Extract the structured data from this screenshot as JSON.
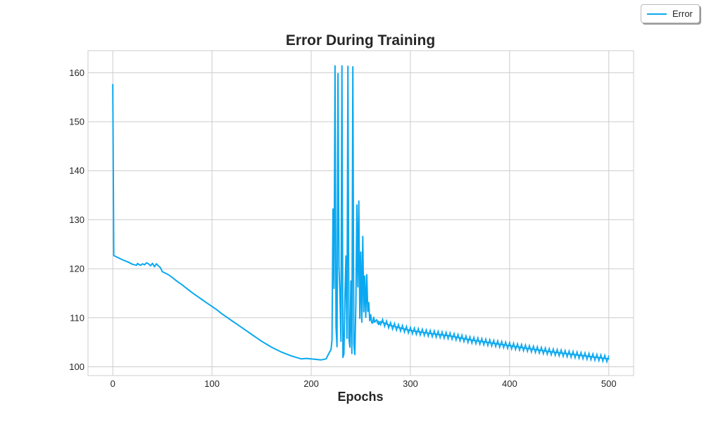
{
  "chart_data": {
    "type": "line",
    "title": "Error During Training",
    "xlabel": "Epochs",
    "ylabel": "",
    "xlim": [
      -25,
      525
    ],
    "ylim": [
      98.2,
      164.5
    ],
    "xticks": [
      0,
      100,
      200,
      300,
      400,
      500
    ],
    "yticks": [
      100,
      110,
      120,
      130,
      140,
      150,
      160
    ],
    "grid": true,
    "legend_position": "top-right (outside axes)",
    "series": [
      {
        "name": "Error",
        "color": "#0aa8f0",
        "x": [
          0,
          1,
          2,
          5,
          10,
          15,
          20,
          24,
          25,
          26,
          28,
          30,
          32,
          34,
          36,
          38,
          40,
          42,
          44,
          46,
          48,
          50,
          53,
          56,
          60,
          65,
          70,
          75,
          80,
          85,
          90,
          95,
          100,
          105,
          110,
          115,
          120,
          125,
          130,
          135,
          140,
          145,
          150,
          155,
          160,
          165,
          170,
          175,
          180,
          185,
          190,
          195,
          200,
          205,
          210,
          215,
          218,
          220,
          221,
          222,
          223,
          224,
          225,
          226,
          227,
          228,
          229,
          230,
          231,
          232,
          233,
          234,
          235,
          236,
          237,
          238,
          239,
          240,
          241,
          242,
          243,
          244,
          245,
          246,
          247,
          248,
          249,
          250,
          251,
          252,
          253,
          254,
          255,
          256,
          257,
          258,
          259,
          260,
          261,
          262,
          263,
          264,
          266,
          268,
          270,
          275,
          280,
          290,
          300,
          320,
          340,
          360,
          380,
          400,
          420,
          440,
          460,
          480,
          500
        ],
        "y": [
          157.6,
          122.7,
          122.6,
          122.3,
          121.8,
          121.4,
          120.9,
          120.7,
          121.1,
          120.9,
          120.7,
          121.0,
          120.8,
          121.2,
          121.0,
          120.6,
          121.1,
          120.4,
          121.0,
          120.6,
          120.2,
          119.4,
          119.1,
          118.8,
          118.2,
          117.4,
          116.7,
          115.9,
          115.1,
          114.4,
          113.7,
          113.0,
          112.3,
          111.6,
          110.8,
          110.1,
          109.4,
          108.7,
          108.0,
          107.3,
          106.6,
          105.9,
          105.2,
          104.6,
          104.0,
          103.5,
          103.0,
          102.6,
          102.2,
          101.9,
          101.6,
          101.7,
          101.6,
          101.5,
          101.4,
          101.6,
          102.8,
          103.5,
          105.5,
          132.2,
          116.0,
          161.4,
          108.2,
          104.1,
          159.8,
          120.3,
          114.6,
          105.2,
          161.4,
          101.9,
          102.6,
          114.5,
          122.6,
          105.8,
          161.3,
          105.9,
          104.0,
          117.5,
          102.7,
          161.2,
          104.6,
          102.5,
          112.8,
          133.0,
          116.3,
          133.8,
          109.9,
          123.4,
          109.1,
          126.6,
          111.2,
          118.5,
          110.1,
          118.8,
          111.3,
          113.1,
          109.4,
          110.6,
          109.0,
          108.9,
          110.1,
          109.1,
          109.6,
          108.6,
          109.2,
          108.8,
          108.4,
          107.9,
          107.4,
          106.8,
          106.3,
          105.5,
          104.9,
          104.3,
          103.7,
          103.1,
          102.6,
          102.1,
          101.6
        ]
      }
    ]
  }
}
